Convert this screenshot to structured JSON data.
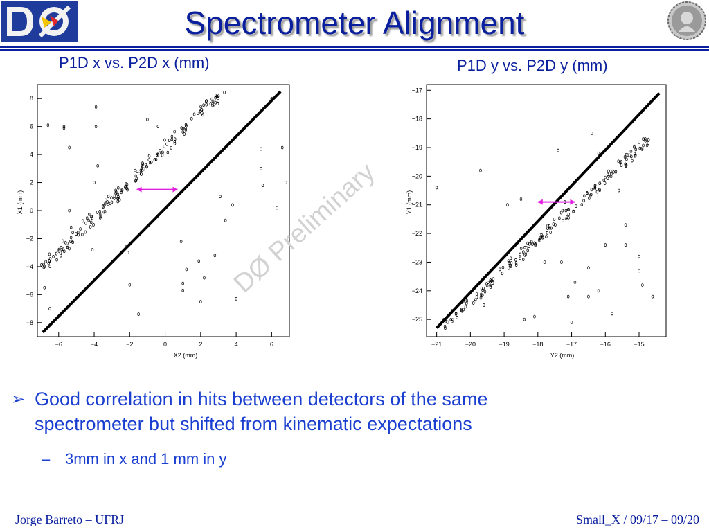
{
  "slide": {
    "title": "Spectrometer Alignment",
    "watermark": "DØ Preliminary",
    "bullets": [
      {
        "marker": "➢",
        "text_line1": "Good correlation in hits between detectors of the same",
        "text_line2": "spectrometer but shifted from kinematic expectations",
        "sub": [
          {
            "marker": "–",
            "text": "3mm in x and 1 mm in y"
          }
        ]
      }
    ],
    "footer_left": "Jorge Barreto – UFRJ",
    "footer_right": "Small_X / 09/17 – 09/20",
    "colors": {
      "title": "#0a1f9e",
      "bullet": "#1a3fd0",
      "arrow": "#e020e0"
    }
  },
  "chart_data": [
    {
      "type": "scatter",
      "title": "P1D x vs. P2D x (mm)",
      "xlabel": "X2 (mm)",
      "ylabel": "X1 (mm)",
      "xlim": [
        -7.2,
        7.0
      ],
      "ylim": [
        -9.0,
        9.0
      ],
      "xticks": [
        -6,
        -4,
        -2,
        0,
        2,
        4,
        6
      ],
      "xtick_labels": [
        "−6",
        "−4",
        "−2",
        "0",
        "2",
        "4",
        "6"
      ],
      "yticks": [
        -8,
        -6,
        -4,
        -2,
        0,
        2,
        4,
        6,
        8
      ],
      "ytick_labels": [
        "−8",
        "−6",
        "−4",
        "−2",
        "0",
        "2",
        "4",
        "6",
        "8"
      ],
      "diagonal_line": {
        "x": [
          -6.9,
          6.5
        ],
        "y": [
          -8.7,
          8.5
        ]
      },
      "band_line": {
        "x": [
          -7.0,
          3.3
        ],
        "y": [
          -4.2,
          8.6
        ]
      },
      "scattered_points": [
        [
          -6.6,
          6.1
        ],
        [
          -5.7,
          6.0
        ],
        [
          -5.7,
          5.9
        ],
        [
          -5.4,
          4.5
        ],
        [
          -3.9,
          7.4
        ],
        [
          -3.9,
          6.0
        ],
        [
          -4.0,
          2.0
        ],
        [
          -3.8,
          3.2
        ],
        [
          -3.2,
          1.0
        ],
        [
          -4.1,
          -2.8
        ],
        [
          -5.3,
          -1.2
        ],
        [
          -5.4,
          0.0
        ],
        [
          -2.0,
          -5.3
        ],
        [
          -1.5,
          -7.4
        ],
        [
          -2.1,
          -3.0
        ],
        [
          -2.2,
          -2.6
        ],
        [
          -1.0,
          6.5
        ],
        [
          -0.4,
          6.0
        ],
        [
          1.2,
          -4.2
        ],
        [
          0.9,
          -2.2
        ],
        [
          1.9,
          -3.6
        ],
        [
          2.0,
          -6.5
        ],
        [
          1.0,
          -5.7
        ],
        [
          1.0,
          -5.2
        ],
        [
          2.2,
          -4.8
        ],
        [
          2.8,
          -3.2
        ],
        [
          4.0,
          -6.3
        ],
        [
          3.1,
          1.0
        ],
        [
          3.8,
          0.4
        ],
        [
          3.4,
          -0.7
        ],
        [
          5.4,
          4.4
        ],
        [
          5.4,
          3.0
        ],
        [
          5.5,
          1.8
        ],
        [
          6.6,
          4.5
        ],
        [
          6.8,
          2.0
        ],
        [
          6.3,
          0.2
        ],
        [
          6.0,
          8.0
        ],
        [
          -6.8,
          -4.0
        ],
        [
          -6.5,
          -7.0
        ],
        [
          -6.8,
          -5.5
        ]
      ],
      "shift_arrow": {
        "x": [
          -1.6,
          0.7
        ],
        "y": [
          1.5,
          1.5
        ]
      }
    },
    {
      "type": "scatter",
      "title": "P1D y vs. P2D y (mm)",
      "xlabel": "Y2 (mm)",
      "ylabel": "Y1 (mm)",
      "xlim": [
        -21.3,
        -14.2
      ],
      "ylim": [
        -25.6,
        -16.8
      ],
      "xticks": [
        -21,
        -20,
        -19,
        -18,
        -17,
        -16,
        -15
      ],
      "xtick_labels": [
        "−21",
        "−20",
        "−19",
        "−18",
        "−17",
        "−16",
        "−15"
      ],
      "yticks": [
        -25,
        -24,
        -23,
        -22,
        -21,
        -20,
        -19,
        -18,
        -17
      ],
      "ytick_labels": [
        "−25",
        "−24",
        "−23",
        "−22",
        "−21",
        "−20",
        "−19",
        "−18",
        "−17"
      ],
      "diagonal_line": {
        "x": [
          -21.0,
          -14.4
        ],
        "y": [
          -25.3,
          -17.1
        ]
      },
      "band_line": {
        "x": [
          -20.8,
          -14.6
        ],
        "y": [
          -25.2,
          -18.6
        ]
      },
      "scattered_points": [
        [
          -21.0,
          -20.4
        ],
        [
          -19.7,
          -19.8
        ],
        [
          -18.9,
          -21.0
        ],
        [
          -18.5,
          -20.8
        ],
        [
          -16.4,
          -18.5
        ],
        [
          -16.2,
          -19.2
        ],
        [
          -15.6,
          -20.5
        ],
        [
          -15.4,
          -21.7
        ],
        [
          -15.4,
          -22.4
        ],
        [
          -15.0,
          -22.8
        ],
        [
          -15.0,
          -23.3
        ],
        [
          -14.9,
          -23.8
        ],
        [
          -14.6,
          -24.2
        ],
        [
          -17.0,
          -25.1
        ],
        [
          -17.3,
          -23.0
        ],
        [
          -16.5,
          -23.2
        ],
        [
          -16.5,
          -24.2
        ],
        [
          -16.2,
          -24.0
        ],
        [
          -17.1,
          -24.2
        ],
        [
          -15.8,
          -24.8
        ],
        [
          -17.4,
          -19.1
        ],
        [
          -17.2,
          -20.9
        ],
        [
          -15.9,
          -20.0
        ],
        [
          -19.6,
          -24.5
        ],
        [
          -18.4,
          -25.0
        ],
        [
          -18.1,
          -24.9
        ],
        [
          -18.3,
          -22.6
        ],
        [
          -17.8,
          -23.0
        ],
        [
          -16.9,
          -23.7
        ],
        [
          -16.0,
          -22.4
        ]
      ],
      "shift_arrow": {
        "x": [
          -18.0,
          -16.9
        ],
        "y": [
          -20.9,
          -20.9
        ]
      }
    }
  ]
}
